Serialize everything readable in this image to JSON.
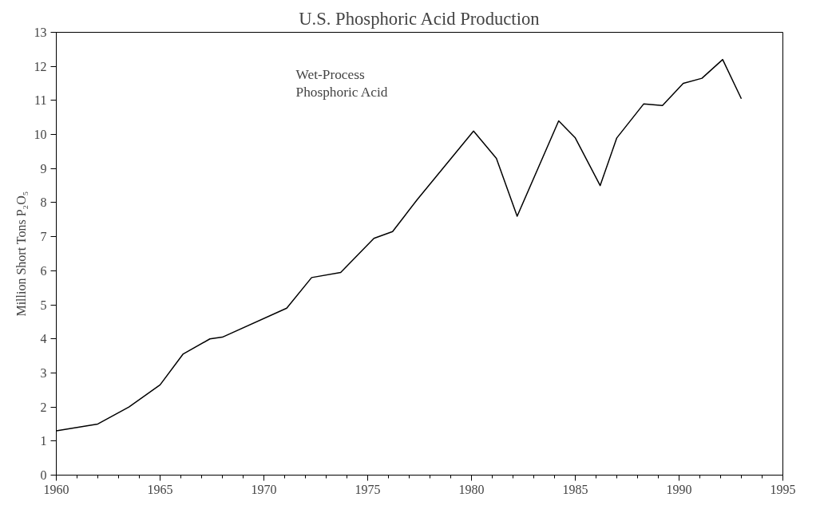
{
  "chart_data": {
    "type": "line",
    "title": "U.S. Phosphoric Acid Production",
    "ylabel": "Million Short Tons P₂O₅",
    "annotations": [
      "Wet-Process\nPhosphoric Acid"
    ],
    "series": [
      {
        "color": "#000000",
        "x": [
          1960,
          1961,
          1962,
          1963.5,
          1965,
          1966.1,
          1967.4,
          1968,
          1971.1,
          1972.3,
          1973.7,
          1975.3,
          1976.2,
          1977.4,
          1980.1,
          1981.2,
          1982.2,
          1984.2,
          1985,
          1986.2,
          1987,
          1988.3,
          1989.2,
          1990.2,
          1991.1,
          1992.1,
          1993
        ],
        "values": [
          1.3,
          1.4,
          1.5,
          2.0,
          2.65,
          3.55,
          4.0,
          4.05,
          4.9,
          5.8,
          5.95,
          6.95,
          7.15,
          8.1,
          10.1,
          9.3,
          7.6,
          10.4,
          9.9,
          8.5,
          9.9,
          10.9,
          10.85,
          11.5,
          11.65,
          12.2,
          11.05
        ]
      }
    ],
    "xlim": [
      1960,
      1995
    ],
    "ylim": [
      0,
      13
    ],
    "xticks": [
      1960,
      1965,
      1970,
      1975,
      1980,
      1985,
      1990,
      1995
    ],
    "yticks": [
      0,
      1,
      2,
      3,
      4,
      5,
      6,
      7,
      8,
      9,
      10,
      11,
      12,
      13
    ],
    "grid": false,
    "marker": "none",
    "line_style": "solid"
  }
}
